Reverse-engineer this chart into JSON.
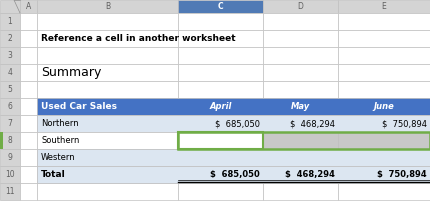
{
  "col_header_bg": "#d4d4d4",
  "row_nums": [
    "1",
    "2",
    "3",
    "4",
    "5",
    "6",
    "7",
    "8",
    "9",
    "10",
    "11"
  ],
  "title_text": "Reference a cell in another worksheet",
  "summary_text": "Summary",
  "header_row_bg": "#4472c4",
  "light_blue_row": "#dce6f1",
  "grid_color": "#c0c0c0",
  "white": "#ffffff",
  "col_header_selected_bg": "#507ab5",
  "selected_cell_green": "#70ad47",
  "gray_cell": "#c8c8c8",
  "row7_vals": [
    "$  685,050",
    "$  468,294",
    "$  750,894"
  ],
  "row10_vals": [
    "$  685,050",
    "$  468,294",
    "$  750,894"
  ],
  "fig_w": 4.3,
  "fig_h": 2.15,
  "dpi": 100
}
